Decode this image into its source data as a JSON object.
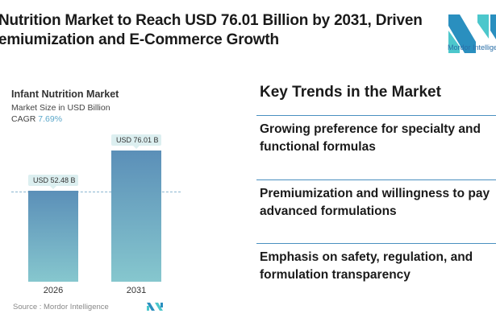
{
  "header": {
    "title_line1": "Nutrition Market to Reach USD 76.01 Billion by 2031, Driven",
    "title_line2": "emiumization and E-Commerce Growth",
    "logo_text": "Mordor Intelligence"
  },
  "chart_data": {
    "type": "bar",
    "title": "Infant Nutrition Market",
    "subtitle": "Market Size in USD Billion",
    "cagr_label": "CAGR",
    "cagr_value": "7.69%",
    "categories": [
      "2026",
      "2031"
    ],
    "values": [
      52.48,
      76.01
    ],
    "data_labels": [
      "USD 52.48 B",
      "USD 76.01 B"
    ],
    "ylim": [
      0,
      76.01
    ],
    "source": "Source :  Mordor Intelligence",
    "colors": {
      "top": "#5b8fb8",
      "bottom": "#86c7ce"
    }
  },
  "trends": {
    "title": "Key Trends in the Market",
    "items": [
      "Growing preference for specialty and functional formulas",
      "Premiumization and willingness to pay advanced formulations",
      "Emphasis on safety, regulation, and formulation transparency"
    ]
  }
}
